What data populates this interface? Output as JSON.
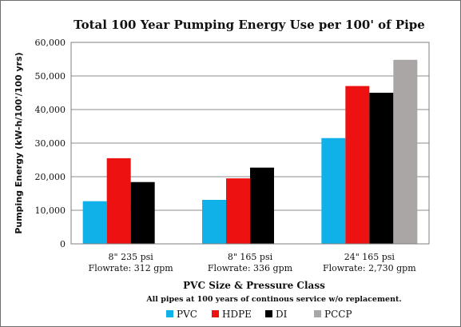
{
  "chart_data": {
    "type": "bar",
    "title": "Total 100 Year Pumping Energy Use per 100' of Pipe",
    "ylabel": "Pumping Energy (kW-h/100'/100 yrs)",
    "xlabel": "PVC Size & Pressure Class",
    "note": "All pipes at 100 years of continous service w/o replacement.",
    "ylim": [
      0,
      60000
    ],
    "yticks": [
      0,
      10000,
      20000,
      30000,
      40000,
      50000,
      60000
    ],
    "ytick_labels": [
      "0",
      "10,000",
      "20,000",
      "30,000",
      "40,000",
      "50,000",
      "60,000"
    ],
    "grid": true,
    "legend_position": "bottom",
    "categories": [
      {
        "line1": "8\" 235 psi",
        "line2": "Flowrate: 312 gpm"
      },
      {
        "line1": "8\" 165 psi",
        "line2": "Flowrate: 336 gpm"
      },
      {
        "line1": "24\" 165 psi",
        "line2": "Flowrate: 2,730 gpm"
      }
    ],
    "series": [
      {
        "name": "PVC",
        "color": "#10b0e8",
        "values": [
          12700,
          13100,
          31500
        ]
      },
      {
        "name": "HDPE",
        "color": "#ee1111",
        "values": [
          25500,
          19500,
          47000
        ]
      },
      {
        "name": "DI",
        "color": "#000000",
        "values": [
          18400,
          22700,
          45000
        ]
      },
      {
        "name": "PCCP",
        "color": "#aaa6a6",
        "values": [
          null,
          null,
          54800
        ]
      }
    ]
  }
}
